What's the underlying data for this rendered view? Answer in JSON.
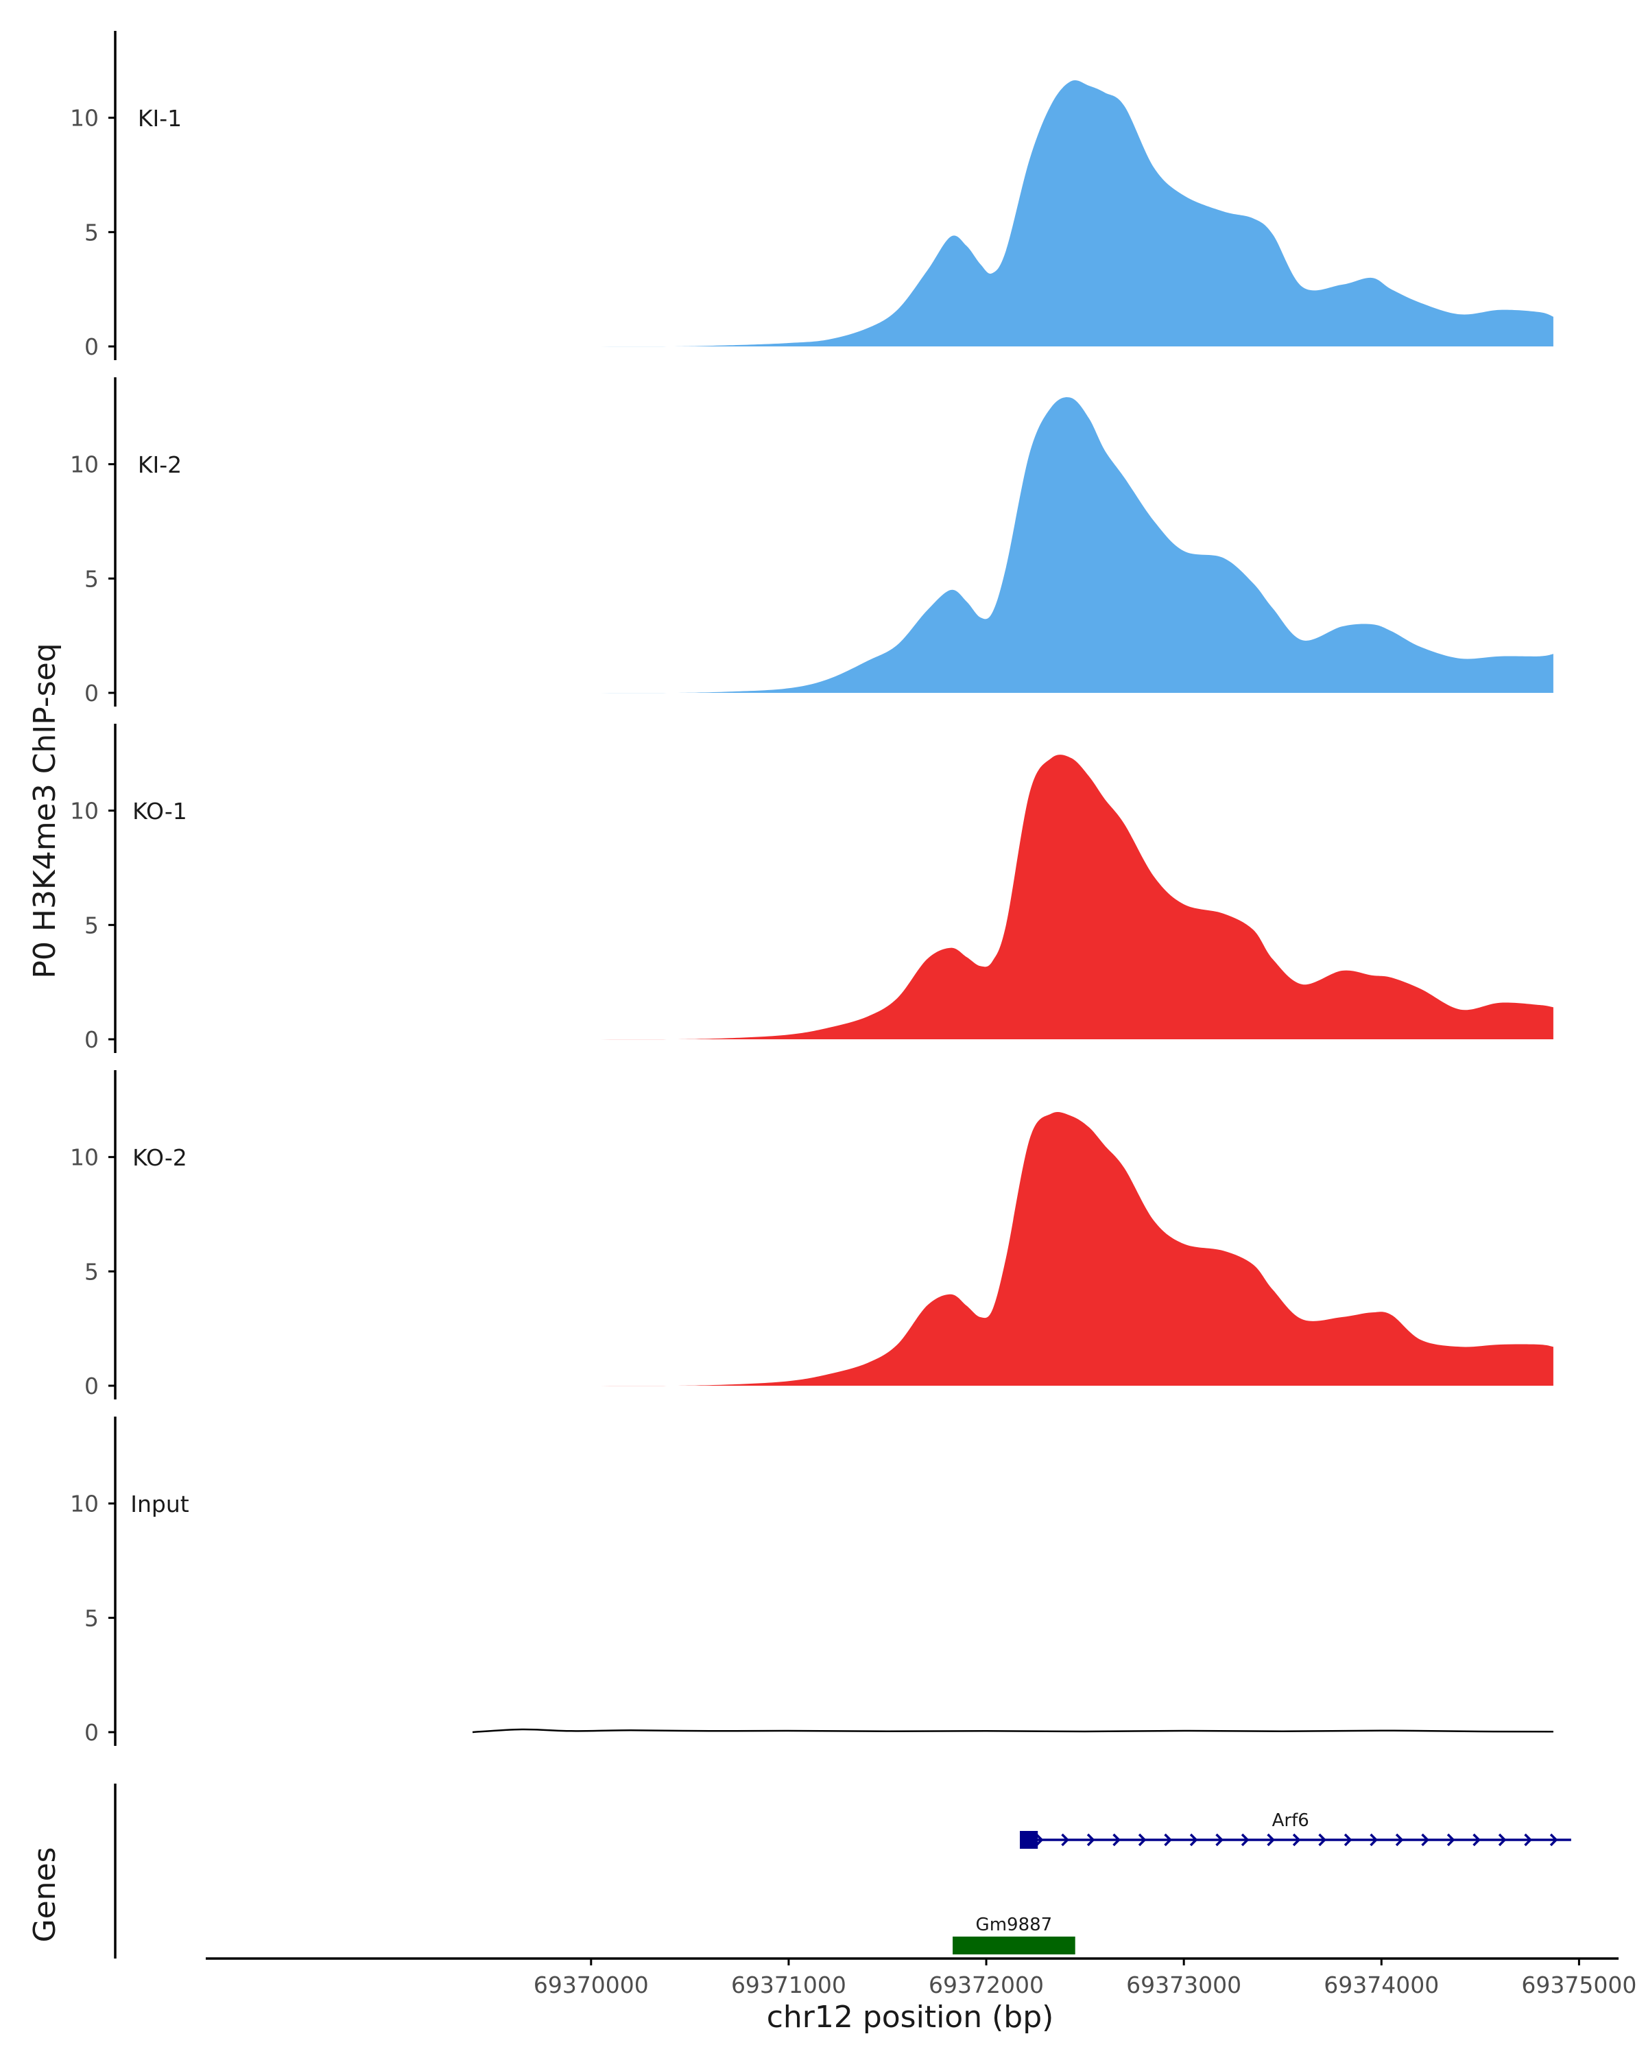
{
  "chart_data": {
    "type": "area",
    "ylabel": "P0 H3K4me3 ChIP-seq",
    "xlabel": "chr12 position (bp)",
    "genes_label": "Genes",
    "y_ticks": [
      "0",
      "5",
      "10"
    ],
    "ylim": [
      0,
      13.8
    ],
    "xlim": [
      69368050,
      69375200
    ],
    "x_ticks": [
      "69370000",
      "69371000",
      "69372000",
      "69373000",
      "69374000",
      "69375000"
    ],
    "colors": {
      "KI": "#5DACEB",
      "KO": "#EE2D2D",
      "Input": "#000000",
      "gene_arf6": "#00008B",
      "gene_gm9887": "#006400",
      "axis": "#000000"
    },
    "tracks": [
      {
        "name": "KI-1",
        "group": "KI",
        "x": [
          69369400,
          69369900,
          69370400,
          69370700,
          69371000,
          69371200,
          69371400,
          69371550,
          69371700,
          69371820,
          69371900,
          69371970,
          69372030,
          69372100,
          69372220,
          69372330,
          69372430,
          69372520,
          69372600,
          69372700,
          69372850,
          69373000,
          69373200,
          69373350,
          69373450,
          69373600,
          69373800,
          69373950,
          69374050,
          69374200,
          69374400,
          69374600,
          69374800,
          69374870
        ],
        "values": [
          0,
          0,
          0,
          0.05,
          0.15,
          0.3,
          0.8,
          1.6,
          3.3,
          4.8,
          4.4,
          3.6,
          3.2,
          4.2,
          8.2,
          10.6,
          11.6,
          11.4,
          11.1,
          10.5,
          7.8,
          6.6,
          5.9,
          5.6,
          4.9,
          2.6,
          2.7,
          3.0,
          2.5,
          1.9,
          1.4,
          1.6,
          1.5,
          1.3
        ]
      },
      {
        "name": "KI-2",
        "group": "KI",
        "x": [
          69369400,
          69369900,
          69370400,
          69370700,
          69371000,
          69371200,
          69371400,
          69371550,
          69371700,
          69371820,
          69371900,
          69371970,
          69372030,
          69372100,
          69372220,
          69372330,
          69372430,
          69372520,
          69372600,
          69372700,
          69372850,
          69373000,
          69373200,
          69373350,
          69373450,
          69373600,
          69373800,
          69373950,
          69374050,
          69374200,
          69374400,
          69374600,
          69374800,
          69374870
        ],
        "values": [
          0,
          0,
          0,
          0.05,
          0.2,
          0.6,
          1.4,
          2.1,
          3.6,
          4.5,
          4.0,
          3.3,
          3.5,
          5.5,
          10.5,
          12.5,
          12.9,
          12.0,
          10.6,
          9.4,
          7.5,
          6.2,
          5.9,
          4.8,
          3.7,
          2.3,
          2.9,
          3.0,
          2.7,
          2.0,
          1.5,
          1.6,
          1.6,
          1.7
        ]
      },
      {
        "name": "KO-1",
        "group": "KO",
        "x": [
          69369400,
          69369900,
          69370400,
          69370700,
          69371000,
          69371200,
          69371400,
          69371550,
          69371700,
          69371820,
          69371900,
          69371970,
          69372030,
          69372100,
          69372220,
          69372330,
          69372430,
          69372520,
          69372600,
          69372700,
          69372850,
          69373000,
          69373200,
          69373350,
          69373450,
          69373600,
          69373800,
          69373950,
          69374050,
          69374200,
          69374400,
          69374600,
          69374800,
          69374870
        ],
        "values": [
          0,
          0,
          0,
          0.05,
          0.2,
          0.5,
          1.0,
          1.8,
          3.5,
          4.0,
          3.6,
          3.2,
          3.4,
          5.0,
          10.8,
          12.3,
          12.3,
          11.5,
          10.5,
          9.4,
          7.1,
          5.9,
          5.5,
          4.8,
          3.5,
          2.4,
          3.0,
          2.8,
          2.7,
          2.2,
          1.3,
          1.6,
          1.5,
          1.4
        ]
      },
      {
        "name": "KO-2",
        "group": "KO",
        "x": [
          69369400,
          69369900,
          69370400,
          69370700,
          69371000,
          69371200,
          69371400,
          69371550,
          69371700,
          69371820,
          69371900,
          69371970,
          69372030,
          69372100,
          69372220,
          69372330,
          69372430,
          69372520,
          69372600,
          69372700,
          69372850,
          69373000,
          69373200,
          69373350,
          69373450,
          69373600,
          69373800,
          69373950,
          69374050,
          69374200,
          69374400,
          69374600,
          69374800,
          69374870
        ],
        "values": [
          0,
          0,
          0,
          0.05,
          0.2,
          0.5,
          1.0,
          1.8,
          3.5,
          4.0,
          3.5,
          3.0,
          3.3,
          5.6,
          10.8,
          11.9,
          11.8,
          11.3,
          10.5,
          9.5,
          7.2,
          6.2,
          5.9,
          5.3,
          4.2,
          2.9,
          3.0,
          3.2,
          3.1,
          2.0,
          1.7,
          1.8,
          1.8,
          1.7
        ]
      },
      {
        "name": "Input",
        "group": "Input",
        "x": [
          69369400,
          69369650,
          69369900,
          69370200,
          69370600,
          69371000,
          69371500,
          69372000,
          69372500,
          69373000,
          69373500,
          69374000,
          69374500,
          69374870
        ],
        "values": [
          0,
          0.12,
          0.05,
          0.08,
          0.05,
          0.06,
          0.04,
          0.05,
          0.03,
          0.06,
          0.04,
          0.07,
          0.03,
          0.02
        ]
      }
    ],
    "genes": [
      {
        "name": "Arf6",
        "start": 69372170,
        "end": 69374960,
        "strand": "+",
        "exon_start": 69372170,
        "exon_end": 69372240,
        "row": 1
      },
      {
        "name": "Gm9887",
        "start": 69371830,
        "end": 69372450,
        "strand": "-",
        "exon_start": 69371830,
        "exon_end": 69372450,
        "row": 2
      }
    ]
  }
}
